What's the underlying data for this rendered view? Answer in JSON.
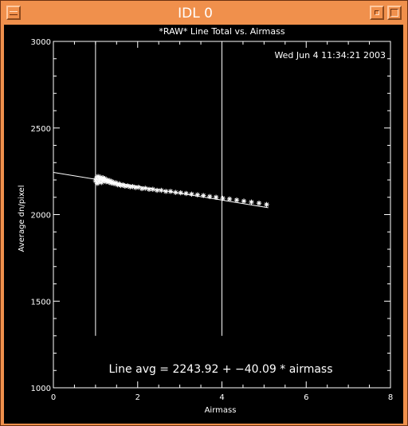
{
  "window": {
    "title": "IDL 0",
    "menu_icon": "window-menu-icon",
    "minimize_icon": "minimize-icon",
    "maximize_icon": "maximize-icon",
    "border_color": "#f0904c"
  },
  "chart_data": {
    "type": "scatter",
    "title": "*RAW* Line Total vs. Airmass",
    "timestamp": "Wed Jun  4 11:34:21 2003",
    "xlabel": "Airmass",
    "ylabel": "Average dn/pixel",
    "xlim": [
      0,
      8
    ],
    "ylim": [
      1000,
      3000
    ],
    "xticks": [
      "0",
      "2",
      "4",
      "6",
      "8"
    ],
    "yticks": [
      "1000",
      "1500",
      "2000",
      "2500",
      "3000"
    ],
    "xtick_values": [
      0,
      2,
      4,
      6,
      8
    ],
    "ytick_values": [
      1000,
      1500,
      2000,
      2500,
      3000
    ],
    "vertical_lines": [
      1.0,
      4.0
    ],
    "vertical_line_range": [
      1300,
      3000
    ],
    "fit": {
      "intercept": 2243.92,
      "slope": -40.09,
      "x_range": [
        0,
        5.1
      ]
    },
    "fit_label": "Line avg = 2243.92 + −40.09 * airmass",
    "point_marker": "*",
    "points": [
      [
        1.0,
        2195
      ],
      [
        1.02,
        2210
      ],
      [
        1.04,
        2180
      ],
      [
        1.06,
        2220
      ],
      [
        1.08,
        2190
      ],
      [
        1.1,
        2205
      ],
      [
        1.12,
        2215
      ],
      [
        1.14,
        2185
      ],
      [
        1.16,
        2200
      ],
      [
        1.18,
        2212
      ],
      [
        1.2,
        2195
      ],
      [
        1.22,
        2208
      ],
      [
        1.25,
        2190
      ],
      [
        1.28,
        2200
      ],
      [
        1.31,
        2188
      ],
      [
        1.34,
        2196
      ],
      [
        1.37,
        2182
      ],
      [
        1.4,
        2190
      ],
      [
        1.44,
        2178
      ],
      [
        1.48,
        2184
      ],
      [
        1.52,
        2172
      ],
      [
        1.56,
        2178
      ],
      [
        1.6,
        2168
      ],
      [
        1.65,
        2172
      ],
      [
        1.7,
        2164
      ],
      [
        1.76,
        2166
      ],
      [
        1.82,
        2160
      ],
      [
        1.88,
        2162
      ],
      [
        1.95,
        2156
      ],
      [
        2.02,
        2158
      ],
      [
        2.1,
        2150
      ],
      [
        2.18,
        2152
      ],
      [
        2.27,
        2146
      ],
      [
        2.36,
        2146
      ],
      [
        2.46,
        2140
      ],
      [
        2.56,
        2140
      ],
      [
        2.67,
        2134
      ],
      [
        2.78,
        2134
      ],
      [
        2.9,
        2128
      ],
      [
        3.02,
        2126
      ],
      [
        3.15,
        2122
      ],
      [
        3.28,
        2118
      ],
      [
        3.42,
        2114
      ],
      [
        3.56,
        2110
      ],
      [
        3.71,
        2104
      ],
      [
        3.86,
        2100
      ],
      [
        4.02,
        2094
      ],
      [
        4.18,
        2090
      ],
      [
        4.35,
        2084
      ],
      [
        4.52,
        2078
      ],
      [
        4.7,
        2072
      ],
      [
        4.88,
        2066
      ],
      [
        5.06,
        2058
      ]
    ]
  }
}
